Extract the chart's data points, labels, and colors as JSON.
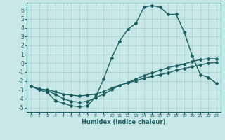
{
  "title": "",
  "xlabel": "Humidex (Indice chaleur)",
  "ylabel": "",
  "bg_color": "#c8e8e8",
  "grid_color": "#a8cccc",
  "line_color": "#1a6060",
  "marker": "D",
  "markersize": 2.0,
  "linewidth": 1.0,
  "xlim": [
    -0.5,
    23.5
  ],
  "ylim": [
    -5.5,
    6.8
  ],
  "xticks": [
    0,
    1,
    2,
    3,
    4,
    5,
    6,
    7,
    8,
    9,
    10,
    11,
    12,
    13,
    14,
    15,
    16,
    17,
    18,
    19,
    20,
    21,
    22,
    23
  ],
  "yticks": [
    -5,
    -4,
    -3,
    -2,
    -1,
    0,
    1,
    2,
    3,
    4,
    5,
    6
  ],
  "curve1_x": [
    0,
    1,
    2,
    3,
    4,
    5,
    6,
    7,
    8,
    9,
    10,
    11,
    12,
    13,
    14,
    15,
    16,
    17,
    18,
    19,
    20,
    21,
    22,
    23
  ],
  "curve1_y": [
    -2.6,
    -3.0,
    -3.3,
    -4.2,
    -4.5,
    -4.8,
    -4.9,
    -4.8,
    -3.8,
    -1.8,
    0.6,
    2.5,
    3.8,
    4.5,
    6.3,
    6.5,
    6.3,
    5.5,
    5.5,
    3.5,
    0.8,
    -1.3,
    -1.6,
    -2.3
  ],
  "curve2_x": [
    0,
    1,
    2,
    3,
    4,
    5,
    6,
    7,
    8,
    9,
    10,
    11,
    12,
    13,
    14,
    15,
    16,
    17,
    18,
    19,
    20,
    21,
    22,
    23
  ],
  "curve2_y": [
    -2.6,
    -2.9,
    -3.0,
    -3.2,
    -3.5,
    -3.6,
    -3.7,
    -3.6,
    -3.5,
    -3.2,
    -2.8,
    -2.5,
    -2.2,
    -2.0,
    -1.7,
    -1.5,
    -1.3,
    -1.1,
    -0.8,
    -0.6,
    -0.4,
    -0.2,
    0.0,
    0.1
  ],
  "curve3_x": [
    0,
    1,
    2,
    3,
    4,
    5,
    6,
    7,
    8,
    9,
    10,
    11,
    12,
    13,
    14,
    15,
    16,
    17,
    18,
    19,
    20,
    21,
    22,
    23
  ],
  "curve3_y": [
    -2.6,
    -2.9,
    -3.1,
    -3.5,
    -4.0,
    -4.3,
    -4.4,
    -4.3,
    -3.9,
    -3.5,
    -3.0,
    -2.5,
    -2.2,
    -1.8,
    -1.4,
    -1.1,
    -0.8,
    -0.5,
    -0.3,
    -0.1,
    0.2,
    0.4,
    0.5,
    0.5
  ],
  "xlabel_fontsize": 6.0,
  "tick_fontsize_x": 4.5,
  "tick_fontsize_y": 5.5
}
